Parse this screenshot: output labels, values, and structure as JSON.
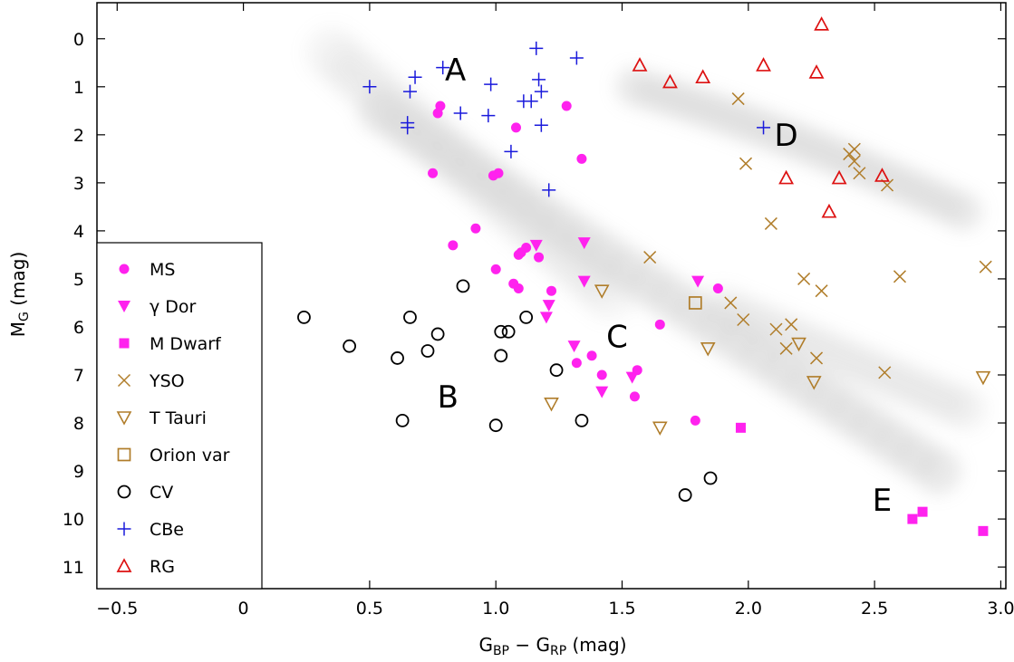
{
  "chart_data": {
    "type": "scatter",
    "xlabel": {
      "main": "G",
      "sub1": "BP",
      "mid": " − G",
      "sub2": "RP",
      "unit": " (mag)"
    },
    "ylabel": {
      "main": "M",
      "sub": "G",
      "unit": " (mag)"
    },
    "xlim": [
      -0.58,
      3.02
    ],
    "ylim": [
      11.45,
      -0.75
    ],
    "y_inverted": true,
    "x_ticks": [
      -0.5,
      0,
      0.5,
      1.0,
      1.5,
      2.0,
      2.5,
      3.0
    ],
    "x_tick_labels": [
      "−0.5",
      "0",
      "0.5",
      "1.0",
      "1.5",
      "2.0",
      "2.5",
      "3.0"
    ],
    "y_ticks": [
      0,
      1,
      2,
      3,
      4,
      5,
      6,
      7,
      8,
      9,
      10,
      11
    ],
    "y_tick_labels": [
      "0",
      "1",
      "2",
      "3",
      "4",
      "5",
      "6",
      "7",
      "8",
      "9",
      "10",
      "11"
    ],
    "grid": false,
    "legend_position": "lower-left",
    "background": "grey density of reference stars (main sequence, white dwarf sequence, giant branch)",
    "annotations": [
      {
        "text": "A",
        "x": 0.84,
        "y": 0.65
      },
      {
        "text": "B",
        "x": 0.81,
        "y": 7.45
      },
      {
        "text": "C",
        "x": 1.48,
        "y": 6.2
      },
      {
        "text": "D",
        "x": 2.15,
        "y": 2.0
      },
      {
        "text": "E",
        "x": 2.53,
        "y": 9.6
      }
    ],
    "series": [
      {
        "name": "MS",
        "marker": "filled-circle",
        "color": "#ff22ee",
        "points": [
          [
            0.77,
            1.55
          ],
          [
            0.78,
            1.4
          ],
          [
            1.28,
            1.4
          ],
          [
            1.08,
            1.85
          ],
          [
            0.75,
            2.8
          ],
          [
            0.99,
            2.85
          ],
          [
            1.01,
            2.8
          ],
          [
            1.34,
            2.5
          ],
          [
            0.92,
            3.95
          ],
          [
            0.83,
            4.3
          ],
          [
            1.1,
            4.45
          ],
          [
            1.12,
            4.35
          ],
          [
            1.09,
            4.5
          ],
          [
            1.17,
            4.55
          ],
          [
            1.0,
            4.8
          ],
          [
            1.07,
            5.1
          ],
          [
            1.09,
            5.2
          ],
          [
            1.22,
            5.25
          ],
          [
            1.65,
            5.95
          ],
          [
            1.88,
            5.2
          ],
          [
            1.32,
            6.75
          ],
          [
            1.38,
            6.6
          ],
          [
            1.42,
            7.0
          ],
          [
            1.56,
            6.9
          ],
          [
            1.55,
            7.45
          ],
          [
            1.79,
            7.95
          ]
        ]
      },
      {
        "name": "γ Dor",
        "marker": "filled-triangle-down",
        "color": "#ff22ee",
        "points": [
          [
            1.16,
            4.3
          ],
          [
            1.35,
            4.25
          ],
          [
            1.35,
            5.05
          ],
          [
            1.21,
            5.55
          ],
          [
            1.2,
            5.8
          ],
          [
            1.31,
            6.4
          ],
          [
            1.8,
            5.05
          ],
          [
            1.42,
            7.35
          ],
          [
            1.54,
            7.05
          ]
        ]
      },
      {
        "name": "M Dwarf",
        "marker": "filled-square",
        "color": "#ff22ee",
        "points": [
          [
            1.97,
            8.1
          ],
          [
            2.65,
            10.0
          ],
          [
            2.69,
            9.85
          ],
          [
            2.93,
            10.25
          ]
        ]
      },
      {
        "name": "YSO",
        "marker": "x",
        "color": "#b07d2a",
        "points": [
          [
            1.96,
            1.25
          ],
          [
            1.99,
            2.6
          ],
          [
            2.09,
            3.85
          ],
          [
            2.4,
            2.4
          ],
          [
            2.42,
            2.3
          ],
          [
            2.42,
            2.55
          ],
          [
            2.44,
            2.8
          ],
          [
            2.55,
            3.05
          ],
          [
            1.61,
            4.55
          ],
          [
            1.93,
            5.5
          ],
          [
            1.98,
            5.85
          ],
          [
            2.11,
            6.05
          ],
          [
            2.17,
            5.95
          ],
          [
            2.15,
            6.45
          ],
          [
            2.22,
            5.0
          ],
          [
            2.29,
            5.25
          ],
          [
            2.27,
            6.65
          ],
          [
            2.54,
            6.95
          ],
          [
            2.6,
            4.95
          ],
          [
            2.94,
            4.75
          ]
        ]
      },
      {
        "name": "T Tauri",
        "marker": "open-triangle-down",
        "color": "#b07d2a",
        "points": [
          [
            1.42,
            5.25
          ],
          [
            1.22,
            7.6
          ],
          [
            1.65,
            8.1
          ],
          [
            1.84,
            6.45
          ],
          [
            2.2,
            6.35
          ],
          [
            2.26,
            7.15
          ],
          [
            2.93,
            7.05
          ]
        ]
      },
      {
        "name": "Orion var",
        "marker": "open-square",
        "color": "#b07d2a",
        "points": [
          [
            1.79,
            5.5
          ]
        ]
      },
      {
        "name": "CV",
        "marker": "open-circle",
        "color": "#000000",
        "points": [
          [
            0.24,
            5.8
          ],
          [
            0.42,
            6.4
          ],
          [
            0.66,
            5.8
          ],
          [
            0.87,
            5.15
          ],
          [
            0.61,
            6.65
          ],
          [
            0.77,
            6.15
          ],
          [
            0.73,
            6.5
          ],
          [
            1.12,
            5.8
          ],
          [
            1.02,
            6.1
          ],
          [
            1.05,
            6.1
          ],
          [
            1.02,
            6.6
          ],
          [
            1.24,
            6.9
          ],
          [
            0.63,
            7.95
          ],
          [
            1.0,
            8.05
          ],
          [
            1.34,
            7.95
          ],
          [
            1.75,
            9.5
          ],
          [
            1.85,
            9.15
          ]
        ]
      },
      {
        "name": "CBe",
        "marker": "plus",
        "color": "#1a1adc",
        "points": [
          [
            0.5,
            1.0
          ],
          [
            0.66,
            1.1
          ],
          [
            0.68,
            0.8
          ],
          [
            0.79,
            0.6
          ],
          [
            0.65,
            1.75
          ],
          [
            0.65,
            1.85
          ],
          [
            0.86,
            1.55
          ],
          [
            0.97,
            1.6
          ],
          [
            0.98,
            0.95
          ],
          [
            1.11,
            1.3
          ],
          [
            1.14,
            1.3
          ],
          [
            1.16,
            0.2
          ],
          [
            1.17,
            0.85
          ],
          [
            1.18,
            1.1
          ],
          [
            1.32,
            0.4
          ],
          [
            1.06,
            2.35
          ],
          [
            1.18,
            1.8
          ],
          [
            1.21,
            3.15
          ],
          [
            2.06,
            1.85
          ]
        ]
      },
      {
        "name": "RG",
        "marker": "open-triangle-up",
        "color": "#dd1111",
        "points": [
          [
            1.57,
            0.55
          ],
          [
            1.69,
            0.9
          ],
          [
            1.82,
            0.8
          ],
          [
            2.06,
            0.55
          ],
          [
            2.27,
            0.7
          ],
          [
            2.29,
            -0.3
          ],
          [
            2.15,
            2.9
          ],
          [
            2.36,
            2.9
          ],
          [
            2.32,
            3.6
          ],
          [
            2.53,
            2.85
          ]
        ]
      }
    ]
  }
}
